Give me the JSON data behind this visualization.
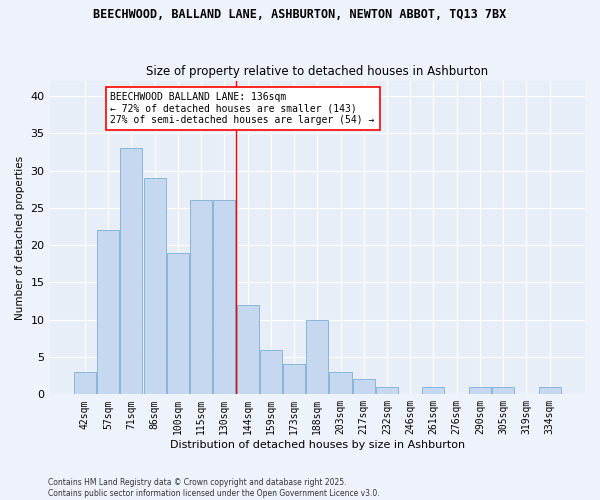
{
  "title_line1": "BEECHWOOD, BALLAND LANE, ASHBURTON, NEWTON ABBOT, TQ13 7BX",
  "title_line2": "Size of property relative to detached houses in Ashburton",
  "xlabel": "Distribution of detached houses by size in Ashburton",
  "ylabel": "Number of detached properties",
  "categories": [
    "42sqm",
    "57sqm",
    "71sqm",
    "86sqm",
    "100sqm",
    "115sqm",
    "130sqm",
    "144sqm",
    "159sqm",
    "173sqm",
    "188sqm",
    "203sqm",
    "217sqm",
    "232sqm",
    "246sqm",
    "261sqm",
    "276sqm",
    "290sqm",
    "305sqm",
    "319sqm",
    "334sqm"
  ],
  "values": [
    3,
    22,
    33,
    29,
    19,
    26,
    26,
    12,
    6,
    4,
    10,
    3,
    2,
    1,
    0,
    1,
    0,
    1,
    1,
    0,
    1
  ],
  "bar_color": "#c5d8f0",
  "bar_edge_color": "#7bafd4",
  "ylim": [
    0,
    42
  ],
  "yticks": [
    0,
    5,
    10,
    15,
    20,
    25,
    30,
    35,
    40
  ],
  "annotation_title": "BEECHWOOD BALLAND LANE: 136sqm",
  "annotation_line2": "← 72% of detached houses are smaller (143)",
  "annotation_line3": "27% of semi-detached houses are larger (54) →",
  "vline_position": 6.5,
  "fig_bg_color": "#eef3fb",
  "axes_bg_color": "#e8eef8",
  "grid_color": "#ffffff",
  "footer_line1": "Contains HM Land Registry data © Crown copyright and database right 2025.",
  "footer_line2": "Contains public sector information licensed under the Open Government Licence v3.0."
}
